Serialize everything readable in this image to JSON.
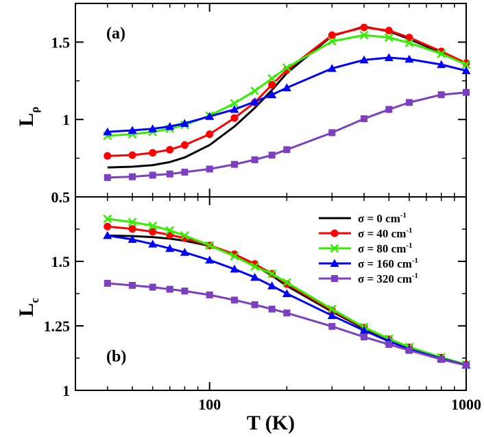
{
  "chart_data": [
    {
      "type": "line",
      "panel_label": "(a)",
      "ylabel": "L",
      "ylabel_sub": "ρ",
      "xscale": "log",
      "xlim": [
        30,
        1000
      ],
      "ylim": [
        0.5,
        1.75
      ],
      "x_ticks": [
        100,
        1000
      ],
      "x_tick_labels": [
        "100",
        "1000"
      ],
      "y_ticks": [
        0.5,
        1,
        1.5
      ],
      "y_tick_labels": [
        "0.5",
        "1",
        "1.5"
      ],
      "grid": false,
      "series": [
        {
          "name": "σ = 0 cm-1",
          "color": "#000000",
          "marker": "none",
          "x": [
            40,
            50,
            60,
            70,
            80,
            100,
            125,
            150,
            175,
            200,
            300,
            400,
            500,
            600,
            800,
            1000
          ],
          "y": [
            0.69,
            0.695,
            0.705,
            0.725,
            0.755,
            0.835,
            0.955,
            1.075,
            1.19,
            1.3,
            1.54,
            1.6,
            1.57,
            1.52,
            1.43,
            1.36
          ]
        },
        {
          "name": "σ = 40 cm-1",
          "color": "#ff0000",
          "marker": "circle",
          "x": [
            40,
            50,
            60,
            70,
            80,
            100,
            125,
            150,
            175,
            200,
            300,
            400,
            500,
            600,
            800,
            1000
          ],
          "y": [
            0.765,
            0.77,
            0.785,
            0.805,
            0.835,
            0.905,
            1.01,
            1.11,
            1.225,
            1.32,
            1.545,
            1.595,
            1.575,
            1.53,
            1.44,
            1.365
          ]
        },
        {
          "name": "σ = 80 cm-1",
          "color": "#33ee00",
          "marker": "x",
          "x": [
            40,
            50,
            60,
            70,
            80,
            100,
            125,
            150,
            175,
            200,
            300,
            400,
            500,
            600,
            800,
            1000
          ],
          "y": [
            0.895,
            0.905,
            0.92,
            0.94,
            0.965,
            1.025,
            1.105,
            1.185,
            1.265,
            1.335,
            1.505,
            1.545,
            1.53,
            1.495,
            1.425,
            1.355
          ]
        },
        {
          "name": "σ = 160 cm-1",
          "color": "#0000ff",
          "marker": "triangle",
          "x": [
            40,
            50,
            60,
            70,
            80,
            100,
            125,
            150,
            175,
            200,
            300,
            400,
            500,
            600,
            800,
            1000
          ],
          "y": [
            0.92,
            0.93,
            0.94,
            0.955,
            0.975,
            1.02,
            1.065,
            1.115,
            1.16,
            1.205,
            1.33,
            1.385,
            1.4,
            1.39,
            1.355,
            1.315
          ]
        },
        {
          "name": "σ = 320 cm-1",
          "color": "#7b3fc0",
          "marker": "square",
          "x": [
            40,
            50,
            60,
            70,
            80,
            100,
            125,
            150,
            175,
            200,
            300,
            400,
            500,
            600,
            800,
            1000
          ],
          "y": [
            0.625,
            0.63,
            0.64,
            0.648,
            0.66,
            0.68,
            0.71,
            0.74,
            0.77,
            0.805,
            0.915,
            1.005,
            1.065,
            1.11,
            1.16,
            1.175
          ]
        }
      ]
    },
    {
      "type": "line",
      "panel_label": "(b)",
      "ylabel": "L",
      "ylabel_sub": "c",
      "xlabel": "T (K)",
      "xscale": "log",
      "xlim": [
        30,
        1000
      ],
      "ylim": [
        1.0,
        1.75
      ],
      "x_ticks": [
        100,
        1000
      ],
      "x_tick_labels": [
        "100",
        "1000"
      ],
      "y_ticks": [
        1,
        1.25,
        1.5
      ],
      "y_tick_labels": [
        "1",
        "1.25",
        "1.5"
      ],
      "grid": false,
      "legend_position": "top-right",
      "series": [
        {
          "name": "σ = 0 cm-1",
          "color": "#000000",
          "marker": "none",
          "x": [
            40,
            50,
            60,
            70,
            80,
            100,
            125,
            150,
            175,
            200,
            300,
            400,
            500,
            600,
            800,
            1000
          ],
          "y": [
            1.6,
            1.598,
            1.594,
            1.588,
            1.58,
            1.56,
            1.525,
            1.485,
            1.445,
            1.405,
            1.305,
            1.24,
            1.195,
            1.165,
            1.125,
            1.1
          ]
        },
        {
          "name": "σ = 40 cm-1",
          "color": "#ff0000",
          "marker": "circle",
          "x": [
            40,
            50,
            60,
            70,
            80,
            100,
            125,
            150,
            175,
            200,
            300,
            400,
            500,
            600,
            800,
            1000
          ],
          "y": [
            1.635,
            1.626,
            1.615,
            1.603,
            1.59,
            1.562,
            1.528,
            1.49,
            1.452,
            1.412,
            1.31,
            1.243,
            1.198,
            1.167,
            1.127,
            1.1
          ]
        },
        {
          "name": "σ = 80 cm-1",
          "color": "#33ee00",
          "marker": "x",
          "x": [
            40,
            50,
            60,
            70,
            80,
            100,
            125,
            150,
            175,
            200,
            300,
            400,
            500,
            600,
            800,
            1000
          ],
          "y": [
            1.665,
            1.652,
            1.638,
            1.62,
            1.6,
            1.562,
            1.52,
            1.48,
            1.452,
            1.418,
            1.315,
            1.245,
            1.2,
            1.168,
            1.128,
            1.1
          ]
        },
        {
          "name": "σ = 160 cm-1",
          "color": "#0000ff",
          "marker": "triangle",
          "x": [
            40,
            50,
            60,
            70,
            80,
            100,
            125,
            150,
            175,
            200,
            300,
            400,
            500,
            600,
            800,
            1000
          ],
          "y": [
            1.6,
            1.585,
            1.567,
            1.55,
            1.535,
            1.505,
            1.47,
            1.438,
            1.405,
            1.375,
            1.29,
            1.232,
            1.19,
            1.16,
            1.123,
            1.098
          ]
        },
        {
          "name": "σ = 320 cm-1",
          "color": "#7b3fc0",
          "marker": "square",
          "x": [
            40,
            50,
            60,
            70,
            80,
            100,
            125,
            150,
            175,
            200,
            300,
            400,
            500,
            600,
            800,
            1000
          ],
          "y": [
            1.415,
            1.407,
            1.4,
            1.392,
            1.385,
            1.37,
            1.35,
            1.332,
            1.315,
            1.3,
            1.248,
            1.207,
            1.178,
            1.155,
            1.12,
            1.097
          ]
        }
      ]
    }
  ],
  "legend": {
    "entries": [
      {
        "prefix": "σ = 0 cm",
        "sup": "-1"
      },
      {
        "prefix": "σ = 40 cm",
        "sup": "-1"
      },
      {
        "prefix": "σ = 80 cm",
        "sup": "-1"
      },
      {
        "prefix": "σ = 160 cm",
        "sup": "-1"
      },
      {
        "prefix": "σ = 320 cm",
        "sup": "-1"
      }
    ]
  }
}
